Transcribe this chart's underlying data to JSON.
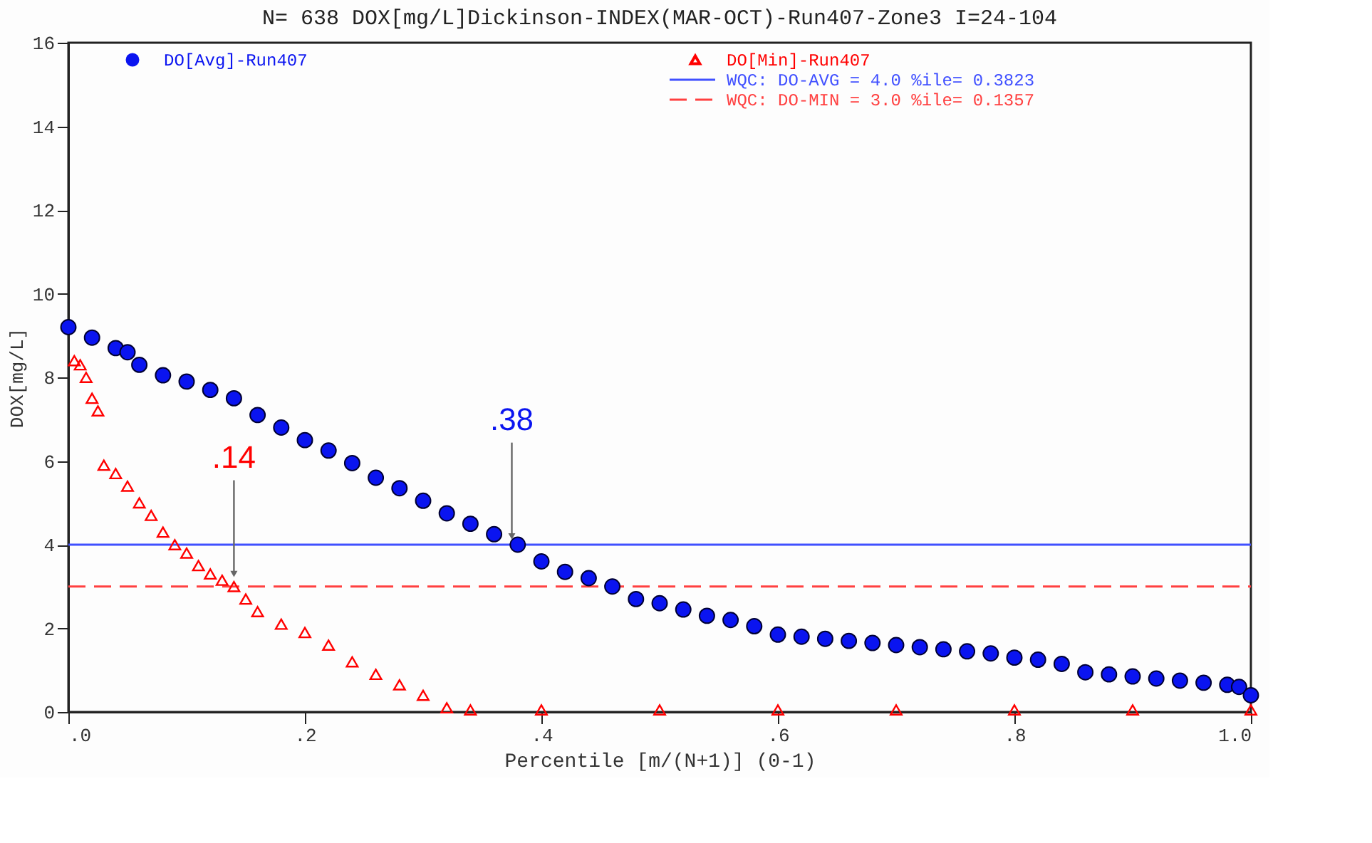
{
  "chart_data": {
    "type": "scatter",
    "title": "N=  638 DOX[mg/L]Dickinson-INDEX(MAR-OCT)-Run407-Zone3 I=24-104",
    "xlabel": "Percentile [m/(N+1)] (0-1)",
    "ylabel": "DOX[mg/L]",
    "xlim": [
      0,
      1
    ],
    "ylim": [
      0,
      16
    ],
    "xticks": [
      {
        "value": 0,
        "label": ".0"
      },
      {
        "value": 0.2,
        "label": ".2"
      },
      {
        "value": 0.4,
        "label": ".4"
      },
      {
        "value": 0.6,
        "label": ".6"
      },
      {
        "value": 0.8,
        "label": ".8"
      },
      {
        "value": 1,
        "label": "1.0"
      }
    ],
    "yticks": [
      0,
      2,
      4,
      6,
      8,
      10,
      12,
      14,
      16
    ],
    "grid": false,
    "legend": "top",
    "series": [
      {
        "name": "DO[Avg]-Run407",
        "color": "#0a14f0",
        "marker": "circle",
        "x": [
          0.0,
          0.02,
          0.04,
          0.05,
          0.06,
          0.08,
          0.1,
          0.12,
          0.14,
          0.16,
          0.18,
          0.2,
          0.22,
          0.24,
          0.26,
          0.28,
          0.3,
          0.32,
          0.34,
          0.36,
          0.38,
          0.4,
          0.42,
          0.44,
          0.46,
          0.48,
          0.5,
          0.52,
          0.54,
          0.56,
          0.58,
          0.6,
          0.62,
          0.64,
          0.66,
          0.68,
          0.7,
          0.72,
          0.74,
          0.76,
          0.78,
          0.8,
          0.82,
          0.84,
          0.86,
          0.88,
          0.9,
          0.92,
          0.94,
          0.96,
          0.98,
          0.99,
          1.0
        ],
        "values": [
          9.2,
          8.95,
          8.7,
          8.6,
          8.3,
          8.05,
          7.9,
          7.7,
          7.5,
          7.1,
          6.8,
          6.5,
          6.25,
          5.95,
          5.6,
          5.35,
          5.05,
          4.75,
          4.5,
          4.25,
          4.0,
          3.6,
          3.35,
          3.2,
          3.0,
          2.7,
          2.6,
          2.45,
          2.3,
          2.2,
          2.05,
          1.85,
          1.8,
          1.75,
          1.7,
          1.65,
          1.6,
          1.55,
          1.5,
          1.45,
          1.4,
          1.3,
          1.25,
          1.15,
          0.95,
          0.9,
          0.85,
          0.8,
          0.75,
          0.7,
          0.65,
          0.6,
          0.4
        ]
      },
      {
        "name": "DO[Min]-Run407",
        "color": "#ff0000",
        "marker": "triangle",
        "x": [
          0.005,
          0.01,
          0.015,
          0.02,
          0.025,
          0.03,
          0.04,
          0.05,
          0.06,
          0.07,
          0.08,
          0.09,
          0.1,
          0.11,
          0.12,
          0.13,
          0.14,
          0.15,
          0.16,
          0.18,
          0.2,
          0.22,
          0.24,
          0.26,
          0.28,
          0.3,
          0.32,
          0.34,
          0.4,
          0.5,
          0.6,
          0.7,
          0.8,
          0.9,
          1.0
        ],
        "values": [
          8.4,
          8.3,
          8.0,
          7.5,
          7.2,
          5.9,
          5.7,
          5.4,
          5.0,
          4.7,
          4.3,
          4.0,
          3.8,
          3.5,
          3.3,
          3.15,
          3.0,
          2.7,
          2.4,
          2.1,
          1.9,
          1.6,
          1.2,
          0.9,
          0.65,
          0.4,
          0.1,
          0.05,
          0.05,
          0.05,
          0.05,
          0.05,
          0.05,
          0.05,
          0.05
        ]
      }
    ],
    "ref_lines": [
      {
        "axis": "y",
        "value": 4,
        "label": "WQC: DO-AVG = 4.0 %ile=  0.3823",
        "color": "#4050ff",
        "line_style": "solid"
      },
      {
        "axis": "y",
        "value": 3,
        "label": "WQC: DO-MIN = 3.0 %ile=  0.1357",
        "color": "#ff4040",
        "line_style": "dashed"
      }
    ],
    "annotations": [
      {
        "text": ".38",
        "x": 0.375,
        "y": 4.2
      },
      {
        "text": ".14",
        "x": 0.14,
        "y": 3.3
      }
    ]
  }
}
